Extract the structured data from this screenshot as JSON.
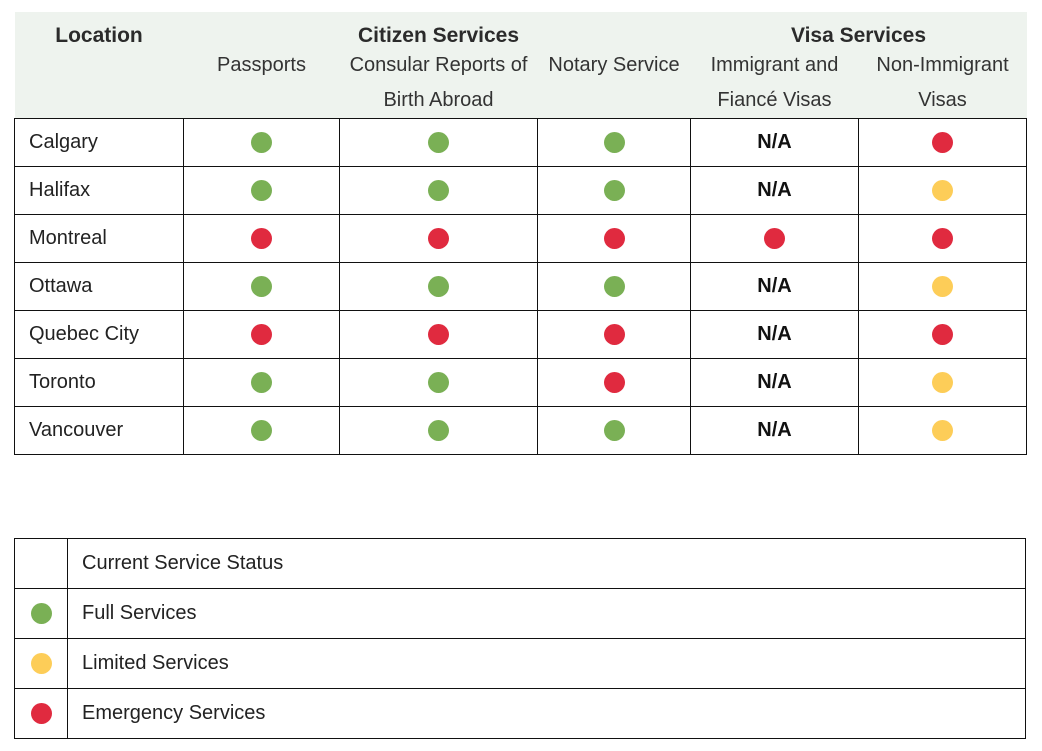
{
  "headers": {
    "location": "Location",
    "citizen_services": "Citizen Services",
    "visa_services": "Visa Services",
    "columns": [
      "Passports",
      "Consular Reports of Birth Abroad",
      "Notary Service",
      "Immigrant and Fiancé Visas",
      "Non-Immigrant Visas"
    ]
  },
  "status_colors": {
    "full": "#7ab055",
    "limited": "#fdcd58",
    "emergency": "#e02a3f"
  },
  "rows": [
    {
      "location": "Calgary",
      "statuses": [
        "full",
        "full",
        "full",
        "N/A",
        "emergency"
      ]
    },
    {
      "location": "Halifax",
      "statuses": [
        "full",
        "full",
        "full",
        "N/A",
        "limited"
      ]
    },
    {
      "location": "Montreal",
      "statuses": [
        "emergency",
        "emergency",
        "emergency",
        "emergency",
        "emergency"
      ]
    },
    {
      "location": "Ottawa",
      "statuses": [
        "full",
        "full",
        "full",
        "N/A",
        "limited"
      ]
    },
    {
      "location": "Quebec City",
      "statuses": [
        "emergency",
        "emergency",
        "emergency",
        "N/A",
        "emergency"
      ]
    },
    {
      "location": "Toronto",
      "statuses": [
        "full",
        "full",
        "emergency",
        "N/A",
        "limited"
      ]
    },
    {
      "location": "Vancouver",
      "statuses": [
        "full",
        "full",
        "full",
        "N/A",
        "limited"
      ]
    }
  ],
  "legend": {
    "title": "Current Service Status",
    "items": [
      {
        "status": "full",
        "label": "Full Services"
      },
      {
        "status": "limited",
        "label": "Limited Services"
      },
      {
        "status": "emergency",
        "label": "Emergency Services"
      }
    ]
  }
}
